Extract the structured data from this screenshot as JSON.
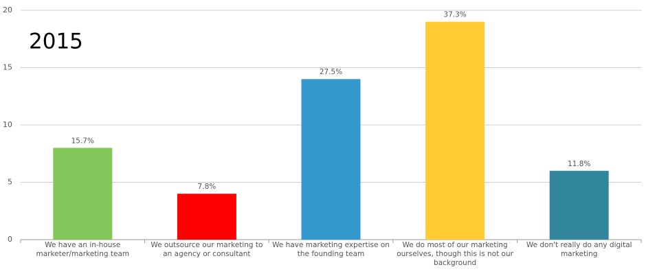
{
  "chart_data": {
    "type": "bar",
    "title": "2015",
    "categories": [
      "We have an in-house marketer/marketing team",
      "We outsource our marketing to an agency or consultant",
      "We have marketing expertise on the founding team",
      "We do most of our marketing ourselves, though this is not our background",
      "We don't really do any digital marketing"
    ],
    "values": [
      8,
      4,
      14,
      19,
      6
    ],
    "value_labels": [
      "15.7%",
      "7.8%",
      "27.5%",
      "37.3%",
      "11.8%"
    ],
    "colors": [
      "#83c65a",
      "#ff0000",
      "#3399cc",
      "#ffcc33",
      "#31859c"
    ],
    "ylim": [
      0,
      20
    ],
    "yticks": [
      0,
      5,
      10,
      15,
      20
    ],
    "grid": true
  }
}
